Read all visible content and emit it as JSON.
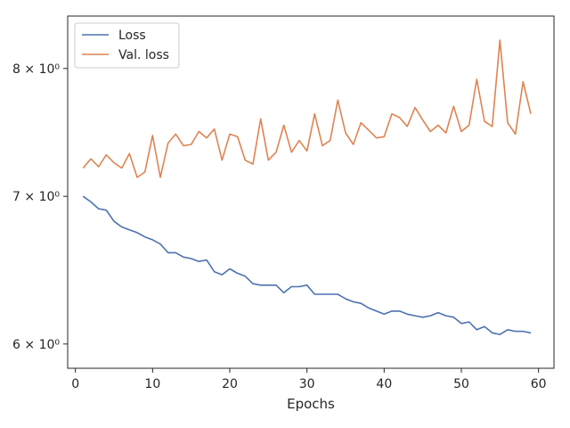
{
  "chart_data": {
    "type": "line",
    "title": "",
    "xlabel": "Epochs",
    "ylabel": "",
    "yscale": "log",
    "xlim": [
      -1,
      62
    ],
    "ylim": [
      5.85,
      8.45
    ],
    "grid": false,
    "legend": "upper-left",
    "x_ticks": [
      0,
      10,
      20,
      30,
      40,
      50,
      60
    ],
    "y_ticks": [
      {
        "value": 6,
        "label": "6 × 10⁰"
      },
      {
        "value": 7,
        "label": "7 × 10⁰"
      },
      {
        "value": 8,
        "label": "8 × 10⁰"
      }
    ],
    "x": [
      1,
      2,
      3,
      4,
      5,
      6,
      7,
      8,
      9,
      10,
      11,
      12,
      13,
      14,
      15,
      16,
      17,
      18,
      19,
      20,
      21,
      22,
      23,
      24,
      25,
      26,
      27,
      28,
      29,
      30,
      31,
      32,
      33,
      34,
      35,
      36,
      37,
      38,
      39,
      40,
      41,
      42,
      43,
      44,
      45,
      46,
      47,
      48,
      49,
      50,
      51,
      52,
      53,
      54,
      55,
      56,
      57,
      58,
      59
    ],
    "series": [
      {
        "name": "Loss",
        "color": "#4c72b0",
        "values": [
          7.0,
          6.96,
          6.91,
          6.9,
          6.82,
          6.78,
          6.76,
          6.74,
          6.71,
          6.69,
          6.66,
          6.6,
          6.6,
          6.57,
          6.56,
          6.54,
          6.55,
          6.47,
          6.45,
          6.49,
          6.46,
          6.44,
          6.39,
          6.38,
          6.38,
          6.38,
          6.33,
          6.37,
          6.37,
          6.38,
          6.32,
          6.32,
          6.32,
          6.32,
          6.29,
          6.27,
          6.26,
          6.23,
          6.21,
          6.19,
          6.21,
          6.21,
          6.19,
          6.18,
          6.17,
          6.18,
          6.2,
          6.18,
          6.17,
          6.13,
          6.14,
          6.09,
          6.11,
          6.07,
          6.06,
          6.09,
          6.08,
          6.08,
          6.07
        ]
      },
      {
        "name": "Val. loss",
        "color": "#dd8452",
        "values": [
          7.21,
          7.28,
          7.22,
          7.31,
          7.25,
          7.21,
          7.32,
          7.14,
          7.18,
          7.46,
          7.14,
          7.4,
          7.47,
          7.38,
          7.39,
          7.49,
          7.44,
          7.51,
          7.27,
          7.47,
          7.45,
          7.27,
          7.24,
          7.59,
          7.27,
          7.33,
          7.54,
          7.33,
          7.42,
          7.34,
          7.63,
          7.38,
          7.42,
          7.74,
          7.48,
          7.39,
          7.56,
          7.5,
          7.44,
          7.45,
          7.63,
          7.6,
          7.53,
          7.68,
          7.58,
          7.49,
          7.54,
          7.48,
          7.69,
          7.49,
          7.54,
          7.91,
          7.57,
          7.53,
          8.24,
          7.56,
          7.47,
          7.89,
          7.63
        ]
      }
    ]
  }
}
